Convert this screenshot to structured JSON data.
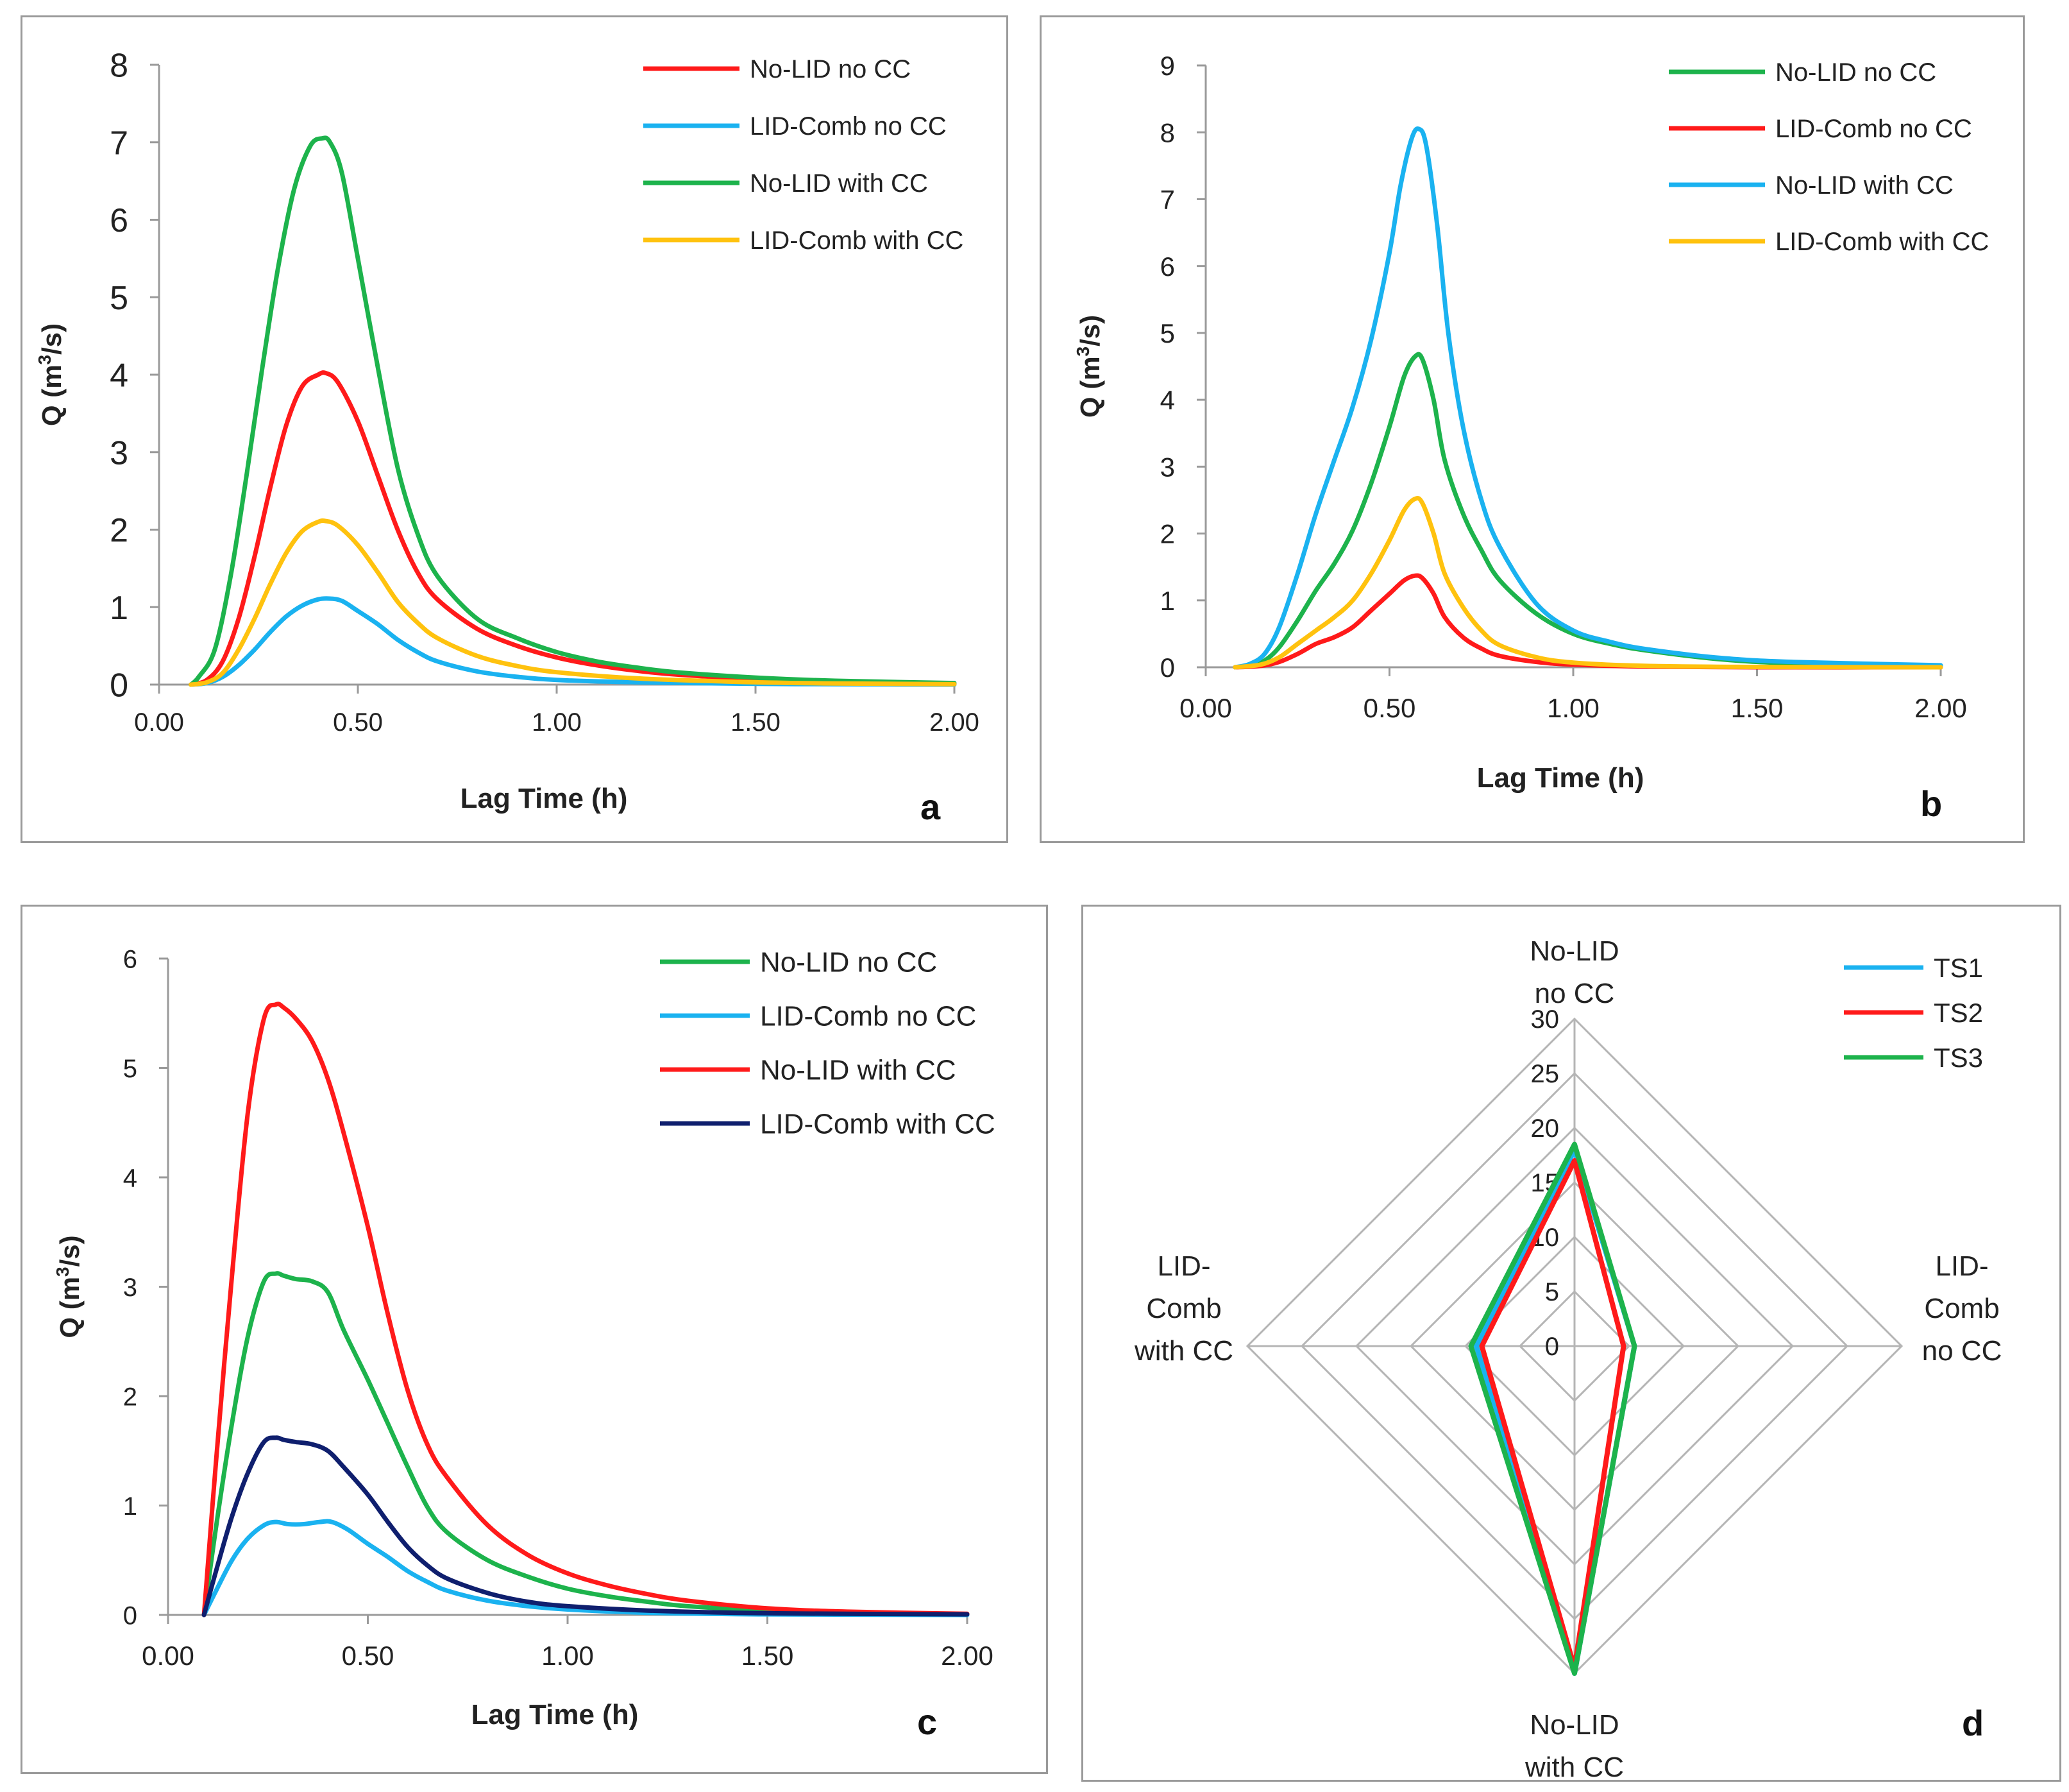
{
  "chart_data": [
    {
      "panel": "a",
      "type": "line",
      "title": "",
      "xlabel": "Lag Time (h)",
      "ylabel_main": "Q (m",
      "ylabel_sup": "3",
      "ylabel_end": "/s)",
      "xlim": [
        0,
        2
      ],
      "ylim": [
        0,
        8
      ],
      "xticks": [
        0,
        0.5,
        1,
        1.5,
        2
      ],
      "xtick_labels": [
        "0.00",
        "0.50",
        "1.00",
        "1.50",
        "2.00"
      ],
      "yticks": [
        0,
        1,
        2,
        3,
        4,
        5,
        6,
        7,
        8
      ],
      "ytick_labels": [
        "0",
        "1",
        "2",
        "3",
        "4",
        "5",
        "6",
        "7",
        "8"
      ],
      "legend_position": "top-right",
      "series": [
        {
          "name": "No-LID no CC",
          "color": "#ff1a1a",
          "x": [
            0.08,
            0.12,
            0.16,
            0.2,
            0.24,
            0.28,
            0.32,
            0.36,
            0.4,
            0.42,
            0.45,
            0.5,
            0.55,
            0.6,
            0.65,
            0.7,
            0.8,
            0.9,
            1.0,
            1.1,
            1.2,
            1.3,
            1.5,
            1.7,
            2.0
          ],
          "y": [
            0,
            0.06,
            0.3,
            0.85,
            1.65,
            2.55,
            3.35,
            3.85,
            4.0,
            4.02,
            3.9,
            3.4,
            2.7,
            2.0,
            1.45,
            1.1,
            0.72,
            0.5,
            0.35,
            0.25,
            0.18,
            0.13,
            0.07,
            0.04,
            0.01
          ]
        },
        {
          "name": "LID-Comb no CC",
          "color": "#1ab2f0",
          "x": [
            0.08,
            0.12,
            0.16,
            0.2,
            0.24,
            0.28,
            0.32,
            0.36,
            0.4,
            0.43,
            0.46,
            0.5,
            0.55,
            0.6,
            0.65,
            0.7,
            0.8,
            0.9,
            1.0,
            1.2,
            1.5,
            1.7,
            2.0
          ],
          "y": [
            0,
            0.02,
            0.1,
            0.25,
            0.45,
            0.68,
            0.88,
            1.02,
            1.1,
            1.11,
            1.08,
            0.95,
            0.78,
            0.58,
            0.42,
            0.3,
            0.17,
            0.1,
            0.06,
            0.03,
            0.01,
            0.005,
            0
          ]
        },
        {
          "name": "No-LID with CC",
          "color": "#1db34c",
          "x": [
            0.08,
            0.1,
            0.14,
            0.18,
            0.22,
            0.26,
            0.3,
            0.34,
            0.38,
            0.41,
            0.43,
            0.46,
            0.5,
            0.55,
            0.6,
            0.65,
            0.7,
            0.8,
            0.9,
            1.0,
            1.1,
            1.2,
            1.3,
            1.5,
            1.7,
            2.0
          ],
          "y": [
            0,
            0.1,
            0.45,
            1.4,
            2.7,
            4.1,
            5.4,
            6.4,
            6.95,
            7.05,
            7.0,
            6.6,
            5.5,
            4.1,
            2.8,
            1.95,
            1.4,
            0.85,
            0.6,
            0.42,
            0.3,
            0.22,
            0.16,
            0.09,
            0.05,
            0.02
          ]
        },
        {
          "name": "LID-Comb with CC",
          "color": "#ffc20e",
          "x": [
            0.08,
            0.12,
            0.16,
            0.2,
            0.24,
            0.28,
            0.32,
            0.36,
            0.4,
            0.42,
            0.45,
            0.5,
            0.55,
            0.6,
            0.65,
            0.7,
            0.8,
            0.9,
            1.0,
            1.2,
            1.5,
            1.7,
            2.0
          ],
          "y": [
            0,
            0.03,
            0.15,
            0.45,
            0.85,
            1.3,
            1.7,
            1.98,
            2.1,
            2.11,
            2.05,
            1.8,
            1.45,
            1.07,
            0.8,
            0.6,
            0.37,
            0.24,
            0.16,
            0.08,
            0.03,
            0.015,
            0.005
          ]
        }
      ]
    },
    {
      "panel": "b",
      "type": "line",
      "title": "",
      "xlabel": "Lag Time (h)",
      "ylabel_main": "Q (m",
      "ylabel_sup": "3",
      "ylabel_end": "/s)",
      "xlim": [
        0,
        2
      ],
      "ylim": [
        0,
        9
      ],
      "xticks": [
        0,
        0.5,
        1,
        1.5,
        2
      ],
      "xtick_labels": [
        "0.00",
        "0.50",
        "1.00",
        "1.50",
        "2.00"
      ],
      "yticks": [
        0,
        1,
        2,
        3,
        4,
        5,
        6,
        7,
        8,
        9
      ],
      "ytick_labels": [
        "0",
        "1",
        "2",
        "3",
        "4",
        "5",
        "6",
        "7",
        "8",
        "9"
      ],
      "legend_position": "top-right",
      "series": [
        {
          "name": "No-LID no CC",
          "color": "#1db34c",
          "x": [
            0.08,
            0.12,
            0.16,
            0.2,
            0.25,
            0.3,
            0.35,
            0.4,
            0.45,
            0.5,
            0.54,
            0.57,
            0.59,
            0.62,
            0.65,
            0.7,
            0.75,
            0.8,
            0.9,
            1.0,
            1.1,
            1.2,
            1.4,
            1.6,
            2.0
          ],
          "y": [
            0,
            0.03,
            0.1,
            0.3,
            0.7,
            1.15,
            1.55,
            2.05,
            2.75,
            3.6,
            4.35,
            4.65,
            4.6,
            4.0,
            3.1,
            2.3,
            1.75,
            1.3,
            0.8,
            0.5,
            0.35,
            0.25,
            0.12,
            0.06,
            0.02
          ]
        },
        {
          "name": "LID-Comb no CC",
          "color": "#ff1a1a",
          "x": [
            0.08,
            0.15,
            0.2,
            0.25,
            0.3,
            0.35,
            0.4,
            0.45,
            0.5,
            0.54,
            0.57,
            0.59,
            0.62,
            0.65,
            0.7,
            0.75,
            0.8,
            0.9,
            1.0,
            1.2,
            1.5,
            2.0
          ],
          "y": [
            0,
            0.02,
            0.08,
            0.2,
            0.35,
            0.45,
            0.6,
            0.85,
            1.1,
            1.3,
            1.37,
            1.33,
            1.1,
            0.75,
            0.45,
            0.28,
            0.17,
            0.08,
            0.04,
            0.01,
            0,
            0
          ]
        },
        {
          "name": "No-LID with CC",
          "color": "#1ab2f0",
          "x": [
            0.08,
            0.12,
            0.16,
            0.2,
            0.25,
            0.3,
            0.35,
            0.4,
            0.45,
            0.5,
            0.53,
            0.56,
            0.58,
            0.6,
            0.63,
            0.66,
            0.7,
            0.75,
            0.8,
            0.9,
            1.0,
            1.1,
            1.2,
            1.4,
            1.6,
            2.0
          ],
          "y": [
            0,
            0.05,
            0.2,
            0.6,
            1.4,
            2.3,
            3.1,
            3.9,
            4.9,
            6.2,
            7.2,
            7.9,
            8.05,
            7.8,
            6.6,
            5.0,
            3.6,
            2.5,
            1.8,
            0.95,
            0.55,
            0.38,
            0.27,
            0.14,
            0.08,
            0.03
          ]
        },
        {
          "name": "LID-Comb with CC",
          "color": "#ffc20e",
          "x": [
            0.08,
            0.15,
            0.2,
            0.25,
            0.3,
            0.35,
            0.4,
            0.45,
            0.5,
            0.54,
            0.57,
            0.59,
            0.62,
            0.65,
            0.7,
            0.75,
            0.8,
            0.9,
            1.0,
            1.2,
            1.5,
            2.0
          ],
          "y": [
            0,
            0.04,
            0.15,
            0.35,
            0.55,
            0.75,
            1.0,
            1.4,
            1.9,
            2.35,
            2.52,
            2.45,
            2.0,
            1.4,
            0.9,
            0.55,
            0.33,
            0.15,
            0.07,
            0.02,
            0.005,
            0
          ]
        }
      ]
    },
    {
      "panel": "c",
      "type": "line",
      "title": "",
      "xlabel": "Lag Time (h)",
      "ylabel_main": "Q (m",
      "ylabel_sup": "3",
      "ylabel_end": "/s)",
      "xlim": [
        0,
        2
      ],
      "ylim": [
        0,
        6
      ],
      "xticks": [
        0,
        0.5,
        1,
        1.5,
        2
      ],
      "xtick_labels": [
        "0.00",
        "0.50",
        "1.00",
        "1.50",
        "2.00"
      ],
      "yticks": [
        0,
        1,
        2,
        3,
        4,
        5,
        6
      ],
      "ytick_labels": [
        "0",
        "1",
        "2",
        "3",
        "4",
        "5",
        "6"
      ],
      "legend_position": "top-right",
      "series": [
        {
          "name": "No-LID no CC",
          "color": "#1db34c",
          "x": [
            0.09,
            0.12,
            0.16,
            0.2,
            0.24,
            0.27,
            0.29,
            0.32,
            0.36,
            0.4,
            0.44,
            0.5,
            0.55,
            0.6,
            0.65,
            0.7,
            0.8,
            0.9,
            1.0,
            1.1,
            1.2,
            1.3,
            1.5,
            1.7,
            2.0
          ],
          "y": [
            0,
            0.8,
            1.75,
            2.55,
            3.05,
            3.12,
            3.1,
            3.07,
            3.05,
            2.95,
            2.6,
            2.15,
            1.75,
            1.35,
            0.98,
            0.75,
            0.5,
            0.35,
            0.24,
            0.17,
            0.12,
            0.08,
            0.04,
            0.02,
            0.005
          ]
        },
        {
          "name": "LID-Comb no CC",
          "color": "#1ab2f0",
          "x": [
            0.09,
            0.12,
            0.16,
            0.2,
            0.24,
            0.27,
            0.3,
            0.34,
            0.38,
            0.41,
            0.45,
            0.5,
            0.55,
            0.6,
            0.65,
            0.7,
            0.8,
            0.9,
            1.0,
            1.2,
            1.5,
            2.0
          ],
          "y": [
            0,
            0.22,
            0.5,
            0.7,
            0.82,
            0.85,
            0.83,
            0.83,
            0.85,
            0.85,
            0.78,
            0.65,
            0.53,
            0.4,
            0.3,
            0.22,
            0.13,
            0.08,
            0.05,
            0.02,
            0.005,
            0
          ]
        },
        {
          "name": "No-LID with CC",
          "color": "#ff1a1a",
          "x": [
            0.09,
            0.12,
            0.16,
            0.2,
            0.24,
            0.27,
            0.29,
            0.32,
            0.36,
            0.4,
            0.44,
            0.5,
            0.55,
            0.6,
            0.65,
            0.7,
            0.8,
            0.9,
            1.0,
            1.1,
            1.2,
            1.3,
            1.5,
            1.7,
            2.0
          ],
          "y": [
            0,
            1.4,
            3.1,
            4.6,
            5.45,
            5.58,
            5.55,
            5.45,
            5.25,
            4.9,
            4.4,
            3.55,
            2.75,
            2.05,
            1.55,
            1.25,
            0.82,
            0.55,
            0.38,
            0.27,
            0.19,
            0.13,
            0.06,
            0.03,
            0.01
          ]
        },
        {
          "name": "LID-Comb with CC",
          "color": "#0f1f6e",
          "x": [
            0.09,
            0.12,
            0.16,
            0.2,
            0.24,
            0.27,
            0.29,
            0.32,
            0.36,
            0.4,
            0.44,
            0.5,
            0.55,
            0.6,
            0.65,
            0.7,
            0.8,
            0.9,
            1.0,
            1.2,
            1.5,
            2.0
          ],
          "y": [
            0,
            0.4,
            0.9,
            1.3,
            1.58,
            1.62,
            1.6,
            1.58,
            1.56,
            1.5,
            1.35,
            1.1,
            0.85,
            0.62,
            0.45,
            0.33,
            0.2,
            0.12,
            0.08,
            0.04,
            0.015,
            0.005
          ]
        }
      ]
    },
    {
      "panel": "d",
      "type": "radar",
      "title": "",
      "axes": [
        "No-LID no CC",
        "LID-Comb no CC",
        "No-LID with CC",
        "LID-Comb with CC"
      ],
      "axis_label_lines": [
        [
          "No-LID",
          "no CC"
        ],
        [
          "LID-",
          "Comb",
          "no CC"
        ],
        [
          "No-LID",
          "with CC"
        ],
        [
          "LID-",
          "Comb",
          "with CC"
        ]
      ],
      "rlim": [
        0,
        30
      ],
      "rticks": [
        0,
        5,
        10,
        15,
        20,
        25,
        30
      ],
      "rtick_labels": [
        "0",
        "5",
        "10",
        "15",
        "20",
        "25",
        "30"
      ],
      "legend_position": "top-right",
      "series": [
        {
          "name": "TS1",
          "color": "#1ab2f0",
          "values": [
            18,
            5.5,
            30,
            9
          ]
        },
        {
          "name": "TS2",
          "color": "#ff1a1a",
          "values": [
            17,
            4.5,
            29.5,
            8.5
          ]
        },
        {
          "name": "TS3",
          "color": "#1db34c",
          "values": [
            18.5,
            5.5,
            30,
            9.5
          ]
        }
      ]
    }
  ]
}
